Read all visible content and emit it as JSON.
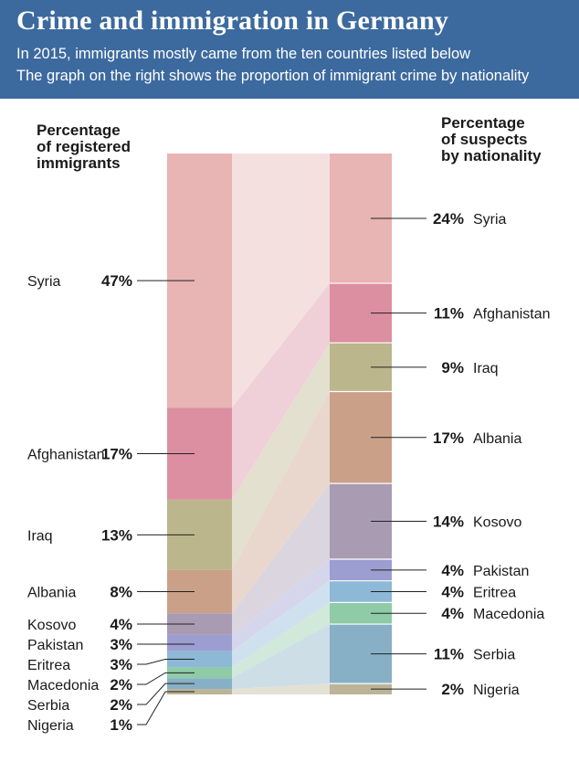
{
  "header": {
    "title": "Crime and immigration in Germany",
    "subtitle_1": "In 2015, immigrants mostly came from the ten countries listed below",
    "subtitle_2": "The graph on the right shows the proportion of immigrant crime by nationality"
  },
  "chart_data": {
    "type": "bar",
    "variant": "stacked-100-percent-comparison",
    "title": "Crime and immigration in Germany",
    "left_axis_label": [
      "Percentage",
      "of registered",
      "immigrants"
    ],
    "right_axis_label": [
      "Percentage",
      "of suspects",
      "by nationality"
    ],
    "series": [
      {
        "name": "Percentage of registered immigrants",
        "categories": [
          "Syria",
          "Afghanistan",
          "Iraq",
          "Albania",
          "Kosovo",
          "Pakistan",
          "Eritrea",
          "Macedonia",
          "Serbia",
          "Nigeria"
        ],
        "values": [
          47,
          17,
          13,
          8,
          4,
          3,
          3,
          2,
          2,
          1
        ],
        "labels": [
          "47%",
          "17%",
          "13%",
          "8%",
          "4%",
          "3%",
          "3%",
          "2%",
          "2%",
          "1%"
        ]
      },
      {
        "name": "Percentage of suspects by nationality",
        "categories": [
          "Syria",
          "Afghanistan",
          "Iraq",
          "Albania",
          "Kosovo",
          "Pakistan",
          "Eritrea",
          "Macedonia",
          "Serbia",
          "Nigeria"
        ],
        "values": [
          24,
          11,
          9,
          17,
          14,
          4,
          4,
          4,
          11,
          2
        ],
        "labels": [
          "24%",
          "11%",
          "9%",
          "17%",
          "14%",
          "4%",
          "4%",
          "4%",
          "11%",
          "2%"
        ]
      }
    ],
    "colors": {
      "Syria": "#e8b4b4",
      "Afghanistan": "#dc8fa1",
      "Iraq": "#bcb68c",
      "Albania": "#cba089",
      "Kosovo": "#a99cb2",
      "Pakistan": "#9c9ed1",
      "Eritrea": "#8db8d6",
      "Macedonia": "#8ecba6",
      "Serbia": "#87b0c6",
      "Nigeria": "#bcb498"
    }
  }
}
